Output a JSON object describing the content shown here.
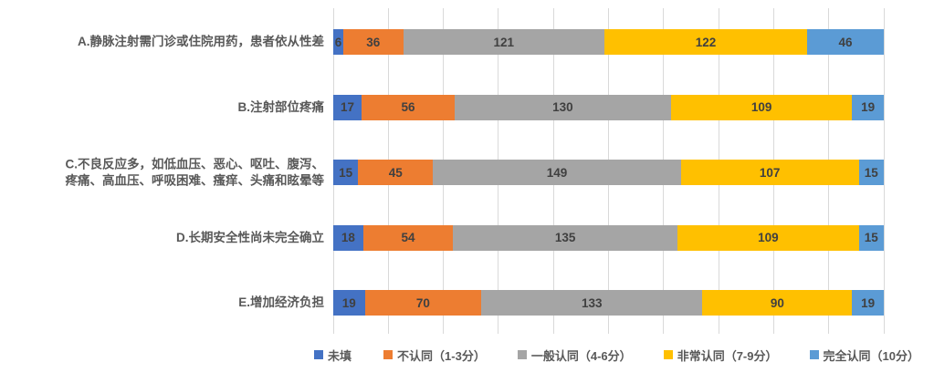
{
  "chart_data": {
    "type": "bar",
    "orientation": "horizontal",
    "stacked": true,
    "title": "",
    "xlabel": "",
    "ylabel": "",
    "grid": true,
    "gridline_intervals": 10,
    "legend_position": "bottom",
    "value_labels": true,
    "row_total": 331,
    "xlim": [
      0,
      331
    ],
    "categories": [
      "A.静脉注射需门诊或住院用药，患者依从性差",
      "B.注射部位疼痛",
      "C.不良反应多，如低血压、恶心、呕吐、腹泻、\n疼痛、高血压、呼吸困难、瘙痒、头痛和眩晕等",
      "D.长期安全性尚未完全确立",
      "E.增加经济负担"
    ],
    "series": [
      {
        "name": "未填",
        "color": "#4472C4",
        "values": [
          6,
          17,
          15,
          18,
          19
        ]
      },
      {
        "name": "不认同（1-3分）",
        "color": "#ED7D31",
        "values": [
          36,
          56,
          45,
          54,
          70
        ]
      },
      {
        "name": "一般认同（4-6分）",
        "color": "#A5A5A5",
        "values": [
          121,
          130,
          149,
          135,
          133
        ]
      },
      {
        "name": "非常认同（7-9分）",
        "color": "#FFC000",
        "values": [
          122,
          109,
          107,
          109,
          90
        ]
      },
      {
        "name": "完全认同（10分）",
        "color": "#5B9BD5",
        "values": [
          46,
          19,
          15,
          15,
          19
        ]
      }
    ]
  },
  "style": {
    "background": "#FFFFFF",
    "gridline_color": "#D9D9D9",
    "category_label_color": "#595959",
    "value_label_color": "#404040",
    "legend_text_color": "#595959"
  }
}
